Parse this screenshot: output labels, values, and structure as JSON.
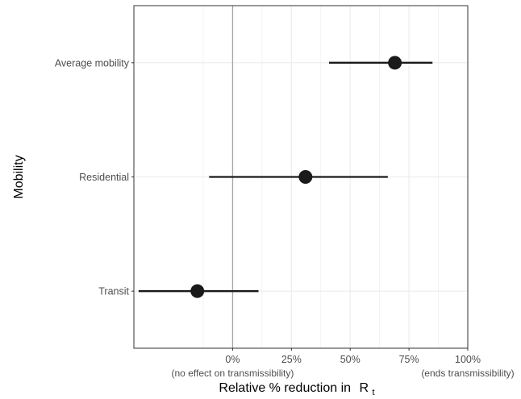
{
  "chart_data": {
    "type": "scatter",
    "subtype": "forest-plot",
    "title": "",
    "xlabel": "Relative % reduction in",
    "xlabel_symbol": "R",
    "xlabel_subscript": "t",
    "ylabel": "Mobility",
    "xlim": [
      -0.42,
      1.0
    ],
    "x_ticks": [
      {
        "value": 0.0,
        "label": "0%",
        "sublabel": "(no effect on transmissibility)"
      },
      {
        "value": 0.25,
        "label": "25%",
        "sublabel": ""
      },
      {
        "value": 0.5,
        "label": "50%",
        "sublabel": ""
      },
      {
        "value": 0.75,
        "label": "75%",
        "sublabel": ""
      },
      {
        "value": 1.0,
        "label": "100%",
        "sublabel": "(ends transmissibility)"
      }
    ],
    "categories": [
      "Average mobility",
      "Residential",
      "Transit"
    ],
    "series": [
      {
        "points": [
          {
            "category": "Average mobility",
            "estimate": 0.69,
            "lower": 0.41,
            "upper": 0.85
          },
          {
            "category": "Residential",
            "estimate": 0.31,
            "lower": -0.1,
            "upper": 0.66
          },
          {
            "category": "Transit",
            "estimate": -0.15,
            "lower": -0.4,
            "upper": 0.11
          }
        ]
      }
    ],
    "reference_line": 0.0,
    "grid": true,
    "colors": {
      "point": "#1a1a1a",
      "interval": "#1a1a1a",
      "grid": "#ebebeb",
      "reference": "#a6a6a6",
      "panel_border": "#333333"
    }
  }
}
